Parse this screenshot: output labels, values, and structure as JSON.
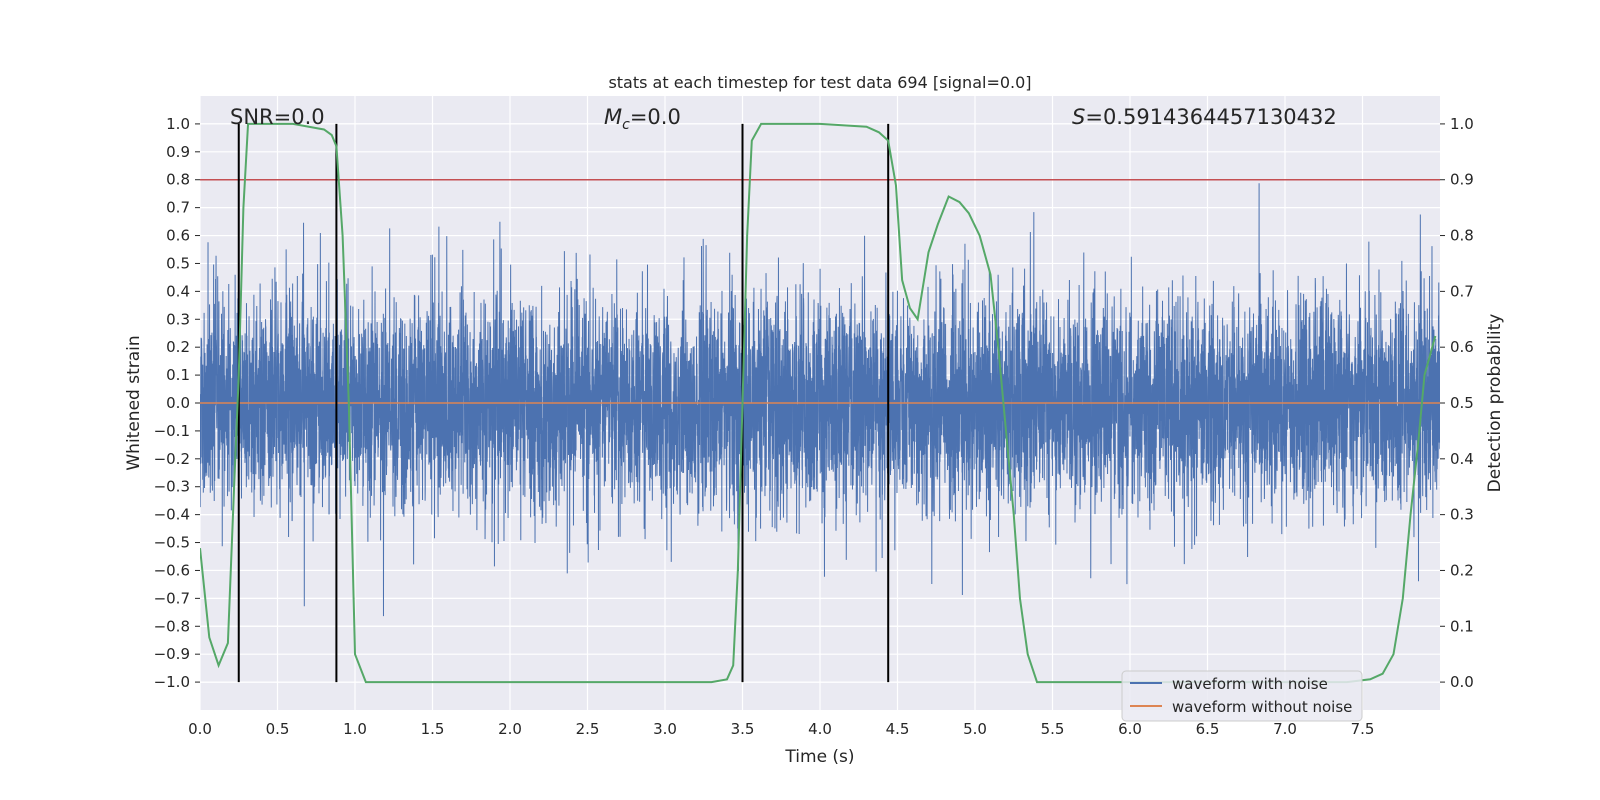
{
  "chart_data": {
    "type": "line",
    "title": "stats at each timestep for test data 694 [signal=0.0]",
    "xlabel": "Time (s)",
    "ylabel_left": "Whitened strain",
    "ylabel_right": "Detection probability",
    "xlim": [
      0.0,
      8.0
    ],
    "ylim_left": [
      -1.1,
      1.1
    ],
    "ylim_right": [
      -0.05,
      1.05
    ],
    "x_ticks": [
      0.0,
      0.5,
      1.0,
      1.5,
      2.0,
      2.5,
      3.0,
      3.5,
      4.0,
      4.5,
      5.0,
      5.5,
      6.0,
      6.5,
      7.0,
      7.5
    ],
    "x_tick_labels": [
      "0.0",
      "0.5",
      "1.0",
      "1.5",
      "2.0",
      "2.5",
      "3.0",
      "3.5",
      "4.0",
      "4.5",
      "5.0",
      "5.5",
      "6.0",
      "6.5",
      "7.0",
      "7.5"
    ],
    "y_left_ticks": [
      -1.0,
      -0.9,
      -0.8,
      -0.7,
      -0.6,
      -0.5,
      -0.4,
      -0.3,
      -0.2,
      -0.1,
      0.0,
      0.1,
      0.2,
      0.3,
      0.4,
      0.5,
      0.6,
      0.7,
      0.8,
      0.9,
      1.0
    ],
    "y_left_tick_labels": [
      "−1.0",
      "−0.9",
      "−0.8",
      "−0.7",
      "−0.6",
      "−0.5",
      "−0.4",
      "−0.3",
      "−0.2",
      "−0.1",
      "0.0",
      "0.1",
      "0.2",
      "0.3",
      "0.4",
      "0.5",
      "0.6",
      "0.7",
      "0.8",
      "0.9",
      "1.0"
    ],
    "y_right_ticks": [
      0.0,
      0.1,
      0.2,
      0.3,
      0.4,
      0.5,
      0.6,
      0.7,
      0.8,
      0.9,
      1.0
    ],
    "y_right_tick_labels": [
      "0.0",
      "0.1",
      "0.2",
      "0.3",
      "0.4",
      "0.5",
      "0.6",
      "0.7",
      "0.8",
      "0.9",
      "1.0"
    ],
    "annotations": {
      "snr": "SNR=0.0",
      "mc_symbol": "M",
      "mc_subscript": "c",
      "mc_value": "=0.0",
      "s_symbol": "S",
      "s_value": "=0.5914364457130432"
    },
    "threshold_right": 0.9,
    "vertical_lines_x": [
      0.25,
      0.88,
      3.5,
      4.44
    ],
    "series": [
      {
        "name": "waveform with noise",
        "color": "#4c72b0",
        "axis": "left",
        "kind": "noise",
        "amplitude_std": 0.19,
        "n_samples": 8192,
        "seed": 694
      },
      {
        "name": "waveform without noise",
        "color": "#dd8452",
        "axis": "left",
        "kind": "flat",
        "value": 0.0
      },
      {
        "name": "detection probability",
        "color": "#55a868",
        "axis": "right",
        "x": [
          0.0,
          0.06,
          0.12,
          0.18,
          0.22,
          0.25,
          0.28,
          0.31,
          0.4,
          0.6,
          0.8,
          0.85,
          0.88,
          0.92,
          0.96,
          1.0,
          1.07,
          1.2,
          1.5,
          2.0,
          2.5,
          3.0,
          3.3,
          3.4,
          3.44,
          3.47,
          3.5,
          3.53,
          3.56,
          3.62,
          3.8,
          4.0,
          4.3,
          4.38,
          4.44,
          4.49,
          4.53,
          4.58,
          4.63,
          4.7,
          4.76,
          4.83,
          4.9,
          4.96,
          5.03,
          5.1,
          5.15,
          5.2,
          5.25,
          5.29,
          5.34,
          5.4,
          5.6,
          6.0,
          6.5,
          7.0,
          7.4,
          7.55,
          7.63,
          7.7,
          7.76,
          7.81,
          7.86,
          7.9,
          7.95,
          7.97
        ],
        "values": [
          0.24,
          0.08,
          0.03,
          0.07,
          0.35,
          0.55,
          0.85,
          1.0,
          1.0,
          1.0,
          0.99,
          0.98,
          0.96,
          0.8,
          0.5,
          0.05,
          0.0,
          0.0,
          0.0,
          0.0,
          0.0,
          0.0,
          0.0,
          0.005,
          0.03,
          0.2,
          0.5,
          0.8,
          0.97,
          1.0,
          1.0,
          1.0,
          0.995,
          0.985,
          0.97,
          0.89,
          0.72,
          0.67,
          0.65,
          0.77,
          0.82,
          0.87,
          0.86,
          0.84,
          0.8,
          0.73,
          0.6,
          0.45,
          0.3,
          0.15,
          0.05,
          0.0,
          0.0,
          0.0,
          0.0,
          0.0,
          0.0,
          0.005,
          0.015,
          0.05,
          0.15,
          0.3,
          0.43,
          0.55,
          0.6,
          0.62
        ]
      }
    ],
    "legend": {
      "position": "lower-right",
      "entries": [
        "waveform with noise",
        "waveform without noise"
      ]
    },
    "colors": {
      "axes_bg": "#eaeaf2",
      "grid": "#ffffff",
      "threshold": "#c44e52",
      "vline": "#000000"
    }
  }
}
